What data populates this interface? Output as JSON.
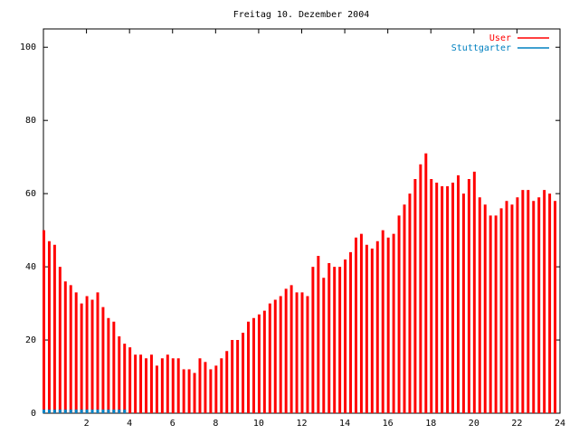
{
  "chart_data": {
    "type": "impulse",
    "title": "Freitag 10. Dezember 2004",
    "x": [
      0,
      0.25,
      0.5,
      0.75,
      1,
      1.25,
      1.5,
      1.75,
      2,
      2.25,
      2.5,
      2.75,
      3,
      3.25,
      3.5,
      3.75,
      4,
      4.25,
      4.5,
      4.75,
      5,
      5.25,
      5.5,
      5.75,
      6,
      6.25,
      6.5,
      6.75,
      7,
      7.25,
      7.5,
      7.75,
      8,
      8.25,
      8.5,
      8.75,
      9,
      9.25,
      9.5,
      9.75,
      10,
      10.25,
      10.5,
      10.75,
      11,
      11.25,
      11.5,
      11.75,
      12,
      12.25,
      12.5,
      12.75,
      13,
      13.25,
      13.5,
      13.75,
      14,
      14.25,
      14.5,
      14.75,
      15,
      15.25,
      15.5,
      15.75,
      16,
      16.25,
      16.5,
      16.75,
      17,
      17.25,
      17.5,
      17.75,
      18,
      18.25,
      18.5,
      18.75,
      19,
      19.25,
      19.5,
      19.75,
      20,
      20.25,
      20.5,
      20.75,
      21,
      21.25,
      21.5,
      21.75,
      22,
      22.25,
      22.5,
      22.75,
      23,
      23.25,
      23.5,
      23.75
    ],
    "series": [
      {
        "name": "User",
        "color": "#ff0000",
        "values": [
          50,
          47,
          46,
          40,
          36,
          35,
          33,
          30,
          32,
          31,
          33,
          29,
          26,
          25,
          21,
          19,
          18,
          16,
          16,
          15,
          16,
          13,
          15,
          16,
          15,
          15,
          12,
          12,
          11,
          15,
          14,
          12,
          13,
          15,
          17,
          20,
          20,
          22,
          25,
          26,
          27,
          28,
          30,
          31,
          32,
          34,
          35,
          33,
          33,
          32,
          40,
          43,
          37,
          41,
          40,
          40,
          42,
          44,
          48,
          49,
          46,
          45,
          47,
          50,
          48,
          49,
          54,
          57,
          60,
          64,
          68,
          71,
          64,
          63,
          62,
          62,
          63,
          65,
          60,
          64,
          66,
          59,
          57,
          54,
          54,
          56,
          58,
          57,
          59,
          61,
          61,
          58,
          59,
          61,
          60,
          58
        ]
      },
      {
        "name": "Stuttgarter",
        "color": "#0080c0",
        "values": [
          1,
          1,
          1,
          1,
          1,
          1,
          1,
          1,
          1,
          1,
          1,
          1,
          1,
          1,
          1,
          1,
          0,
          0,
          0,
          0,
          0,
          0,
          0,
          0,
          0,
          0,
          0,
          0,
          0,
          0,
          0,
          0,
          0,
          0,
          0,
          0,
          0,
          0,
          0,
          0,
          0,
          0,
          0,
          0,
          0,
          0,
          0,
          0,
          0,
          0,
          0,
          0,
          0,
          0,
          0,
          0,
          0,
          0,
          0,
          0,
          0,
          0,
          0,
          0,
          0,
          0,
          0,
          0,
          0,
          0,
          0,
          0,
          0,
          0,
          0,
          0,
          0,
          0,
          0,
          0,
          0,
          0,
          0,
          0,
          0,
          0,
          0,
          0,
          0,
          0,
          0,
          0,
          0,
          0,
          0,
          0
        ]
      }
    ],
    "xlim": [
      0,
      24
    ],
    "xticks": [
      2,
      4,
      6,
      8,
      10,
      12,
      14,
      16,
      18,
      20,
      22,
      24
    ],
    "ylim": [
      0,
      105
    ],
    "yticks": [
      0,
      20,
      40,
      60,
      80,
      100
    ],
    "legend": "top-right"
  }
}
